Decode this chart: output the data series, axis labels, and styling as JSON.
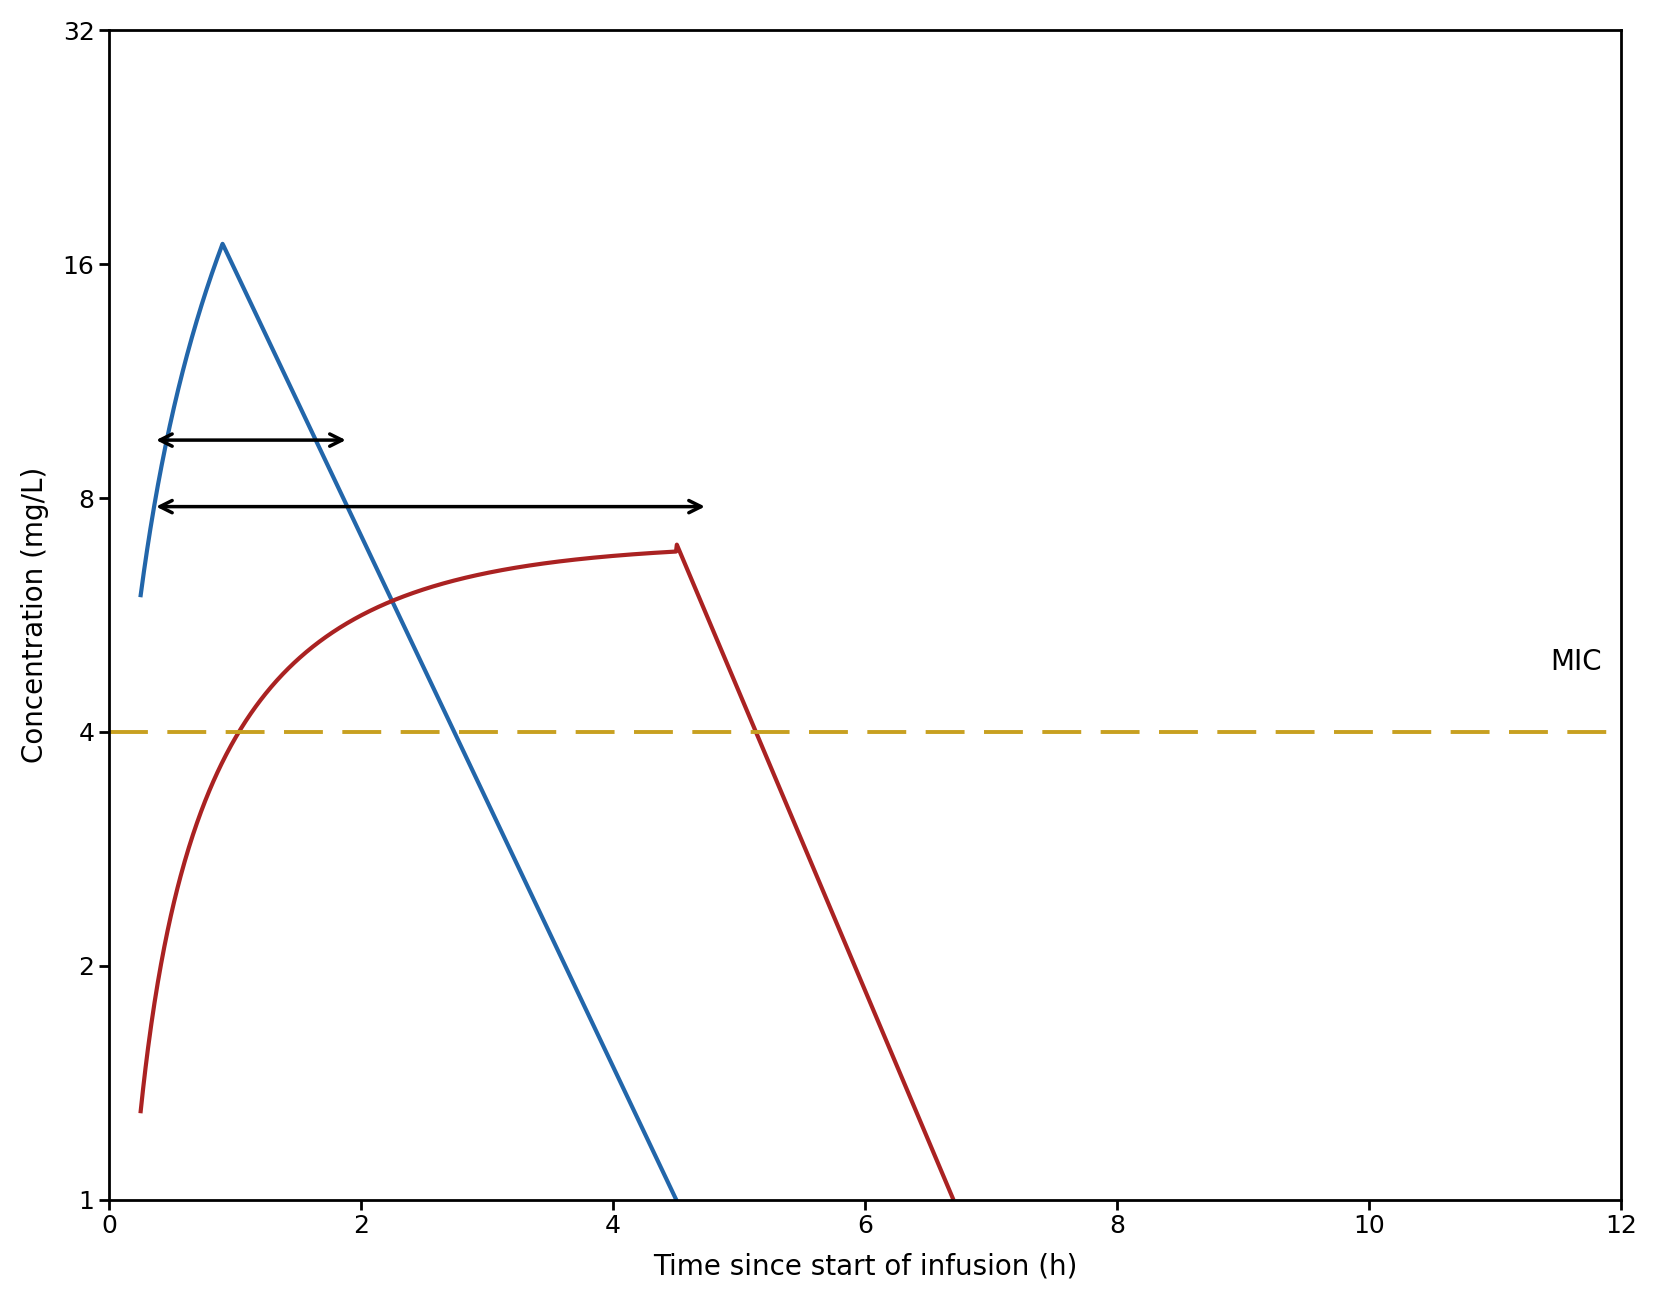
{
  "title": "",
  "xlabel": "Time since start of infusion (h)",
  "ylabel": "Concentration (mg/L)",
  "xlim": [
    0,
    12
  ],
  "ylim_log": [
    1,
    32
  ],
  "yticks": [
    1,
    2,
    4,
    8,
    16,
    32
  ],
  "xticks": [
    0,
    2,
    4,
    6,
    8,
    10,
    12
  ],
  "mic_value": 4,
  "mic_color": "#C8A020",
  "mic_label": "MIC",
  "blue_color": "#2266AA",
  "red_color": "#AA2222",
  "arrow_color": "#000000",
  "blue_arrow": {
    "x_start": 0.35,
    "x_end": 1.9,
    "y": 9.5
  },
  "red_arrow": {
    "x_start": 0.35,
    "x_end": 4.75,
    "y": 7.8
  },
  "background_color": "#ffffff",
  "axis_linewidth": 2.0,
  "curve_linewidth": 3.0,
  "xlabel_fontsize": 20,
  "ylabel_fontsize": 20,
  "tick_fontsize": 18,
  "mic_label_fontsize": 20
}
